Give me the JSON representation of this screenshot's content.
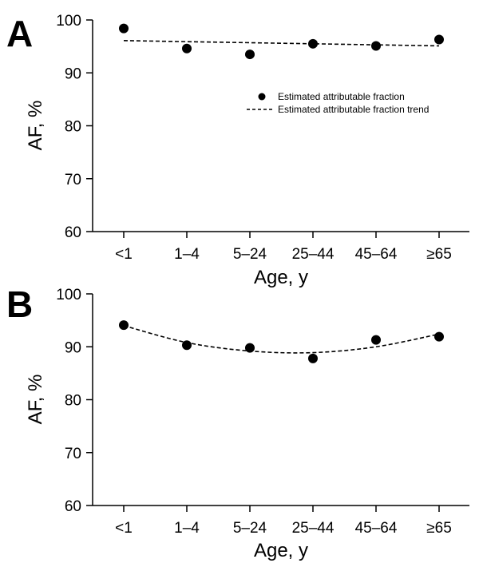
{
  "chart_data": [
    {
      "panel": "A",
      "type": "scatter",
      "categories": [
        "<1",
        "1–4",
        "5–24",
        "25–44",
        "45–64",
        "≥65"
      ],
      "series": [
        {
          "name": "Estimated attributable fraction",
          "kind": "points",
          "values": [
            98.4,
            94.6,
            93.5,
            95.5,
            95.1,
            96.3
          ]
        },
        {
          "name": "Estimated attributable fraction trend",
          "kind": "dashed-line",
          "values": [
            96.1,
            95.9,
            95.7,
            95.5,
            95.3,
            95.1
          ]
        }
      ],
      "xlabel": "Age, y",
      "ylabel": "AF, %",
      "ylim": [
        60,
        100
      ],
      "yticks": [
        60,
        70,
        80,
        90,
        100
      ],
      "grid": false,
      "legend_position": "upper-right"
    },
    {
      "panel": "B",
      "type": "scatter",
      "categories": [
        "<1",
        "1–4",
        "5–24",
        "25–44",
        "45–64",
        "≥65"
      ],
      "series": [
        {
          "kind": "points",
          "values": [
            94.1,
            90.3,
            89.8,
            87.8,
            91.3,
            91.9
          ]
        },
        {
          "kind": "dashed-line",
          "values": [
            94.0,
            90.8,
            89.2,
            88.9,
            90.0,
            92.4
          ]
        }
      ],
      "xlabel": "Age, y",
      "ylabel": "AF, %",
      "ylim": [
        60,
        100
      ],
      "yticks": [
        60,
        70,
        80,
        90,
        100
      ],
      "grid": false
    }
  ]
}
